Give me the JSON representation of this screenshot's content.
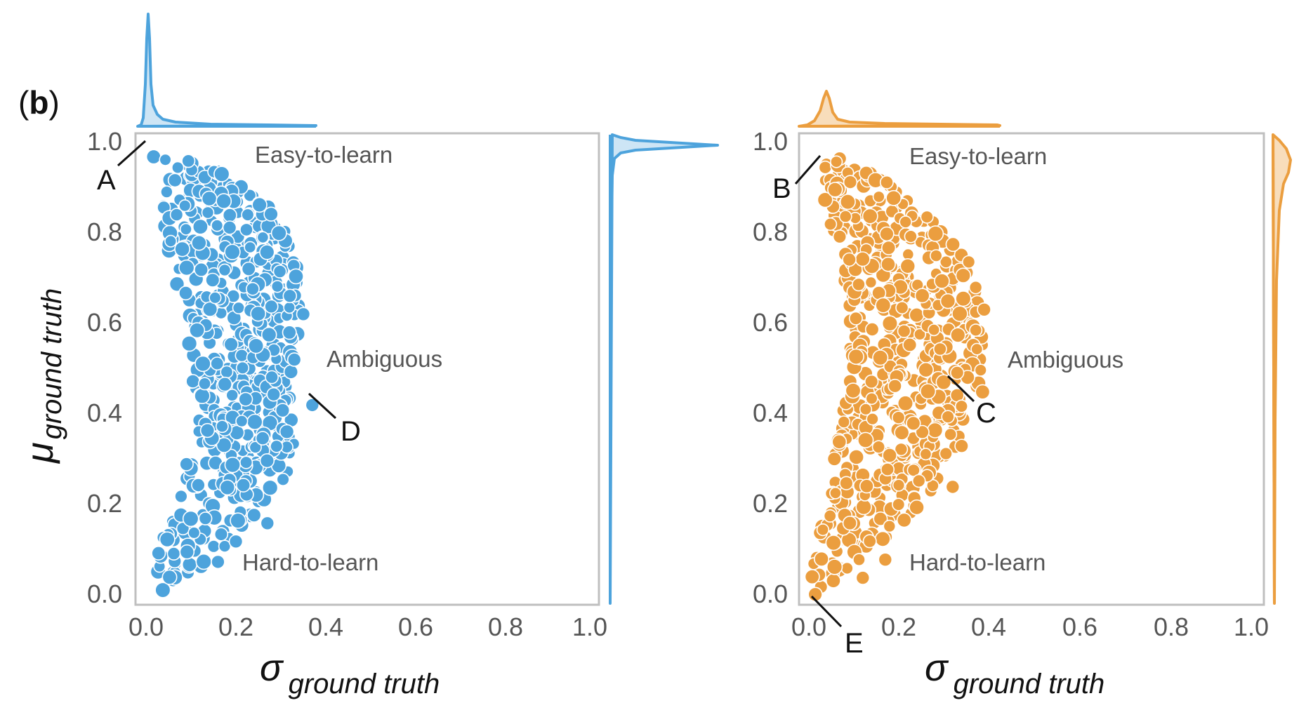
{
  "panel_label": {
    "open": "(",
    "letter": "b",
    "close": ")"
  },
  "colors": {
    "left_series": "#4DA3DC",
    "right_series": "#EB9E3F",
    "left_fill_light": "#CDE5F5",
    "right_fill_light": "#F8DDBB",
    "frame": "#BFBFBF",
    "callout_line": "#111111"
  },
  "chart_data": [
    {
      "type": "scatter",
      "marginals": "density curves on top (x) and right (y)",
      "xlabel": {
        "symbol": "σ",
        "subscript": "ground truth"
      },
      "ylabel": {
        "symbol": "μ",
        "subscript": "ground truth"
      },
      "xlim": [
        0.0,
        1.0
      ],
      "ylim": [
        0.0,
        1.0
      ],
      "xticks": [
        "0.0",
        "0.2",
        "0.4",
        "0.6",
        "0.8",
        "1.0"
      ],
      "yticks": [
        "0.0",
        "0.2",
        "0.4",
        "0.6",
        "0.8",
        "1.0"
      ],
      "grid": false,
      "region_labels": [
        "Easy-to-learn",
        "Ambiguous",
        "Hard-to-learn"
      ],
      "callouts": [
        {
          "label": "A",
          "x": 0.0,
          "y": 0.99
        },
        {
          "label": "D",
          "x": 0.36,
          "y": 0.45
        }
      ],
      "envelope": [
        [
          0.0,
          0.99
        ],
        [
          0.06,
          0.975
        ],
        [
          0.14,
          0.96
        ],
        [
          0.22,
          0.91
        ],
        [
          0.28,
          0.86
        ],
        [
          0.33,
          0.78
        ],
        [
          0.345,
          0.72
        ],
        [
          0.34,
          0.64
        ],
        [
          0.34,
          0.57
        ],
        [
          0.33,
          0.47
        ],
        [
          0.33,
          0.31
        ],
        [
          0.27,
          0.2
        ],
        [
          0.18,
          0.12
        ],
        [
          0.12,
          0.07
        ],
        [
          0.07,
          0.03
        ],
        [
          0.03,
          0.02
        ],
        [
          0.02,
          0.1
        ],
        [
          0.06,
          0.2
        ],
        [
          0.09,
          0.27
        ],
        [
          0.11,
          0.33
        ],
        [
          0.1,
          0.4
        ],
        [
          0.09,
          0.48
        ],
        [
          0.09,
          0.6
        ],
        [
          0.06,
          0.72
        ],
        [
          0.04,
          0.83
        ],
        [
          0.03,
          0.92
        ]
      ],
      "outliers": [
        [
          0.16,
          0.085
        ],
        [
          0.2,
          0.13
        ],
        [
          0.27,
          0.17
        ],
        [
          0.09,
          0.3
        ],
        [
          0.32,
          0.67
        ],
        [
          0.35,
          0.63
        ],
        [
          0.37,
          0.43
        ],
        [
          0.33,
          0.53
        ]
      ]
    },
    {
      "type": "scatter",
      "marginals": "density curves on top (x) and right (y)",
      "xlabel": {
        "symbol": "σ",
        "subscript": "ground truth"
      },
      "ylabel": {
        "symbol": "",
        "subscript": ""
      },
      "xlim": [
        0.0,
        1.0
      ],
      "ylim": [
        0.0,
        1.0
      ],
      "xticks": [
        "0.0",
        "0.2",
        "0.4",
        "0.6",
        "0.8",
        "1.0"
      ],
      "yticks": [
        "0.0",
        "0.2",
        "0.4",
        "0.6",
        "0.8",
        "1.0"
      ],
      "grid": false,
      "region_labels": [
        "Easy-to-learn",
        "Ambiguous",
        "Hard-to-learn"
      ],
      "callouts": [
        {
          "label": "B",
          "x": 0.03,
          "y": 0.98
        },
        {
          "label": "C",
          "x": 0.31,
          "y": 0.49
        },
        {
          "label": "E",
          "x": 0.0,
          "y": 0.01
        }
      ],
      "envelope": [
        [
          0.0,
          0.01
        ],
        [
          0.04,
          0.02
        ],
        [
          0.08,
          0.05
        ],
        [
          0.13,
          0.1
        ],
        [
          0.2,
          0.16
        ],
        [
          0.26,
          0.22
        ],
        [
          0.31,
          0.3
        ],
        [
          0.35,
          0.38
        ],
        [
          0.39,
          0.46
        ],
        [
          0.395,
          0.56
        ],
        [
          0.39,
          0.66
        ],
        [
          0.36,
          0.74
        ],
        [
          0.31,
          0.8
        ],
        [
          0.24,
          0.87
        ],
        [
          0.16,
          0.93
        ],
        [
          0.08,
          0.97
        ],
        [
          0.03,
          0.98
        ],
        [
          0.03,
          0.9
        ],
        [
          0.05,
          0.8
        ],
        [
          0.08,
          0.7
        ],
        [
          0.09,
          0.6
        ],
        [
          0.09,
          0.5
        ],
        [
          0.07,
          0.4
        ],
        [
          0.05,
          0.28
        ],
        [
          0.03,
          0.18
        ],
        [
          0.01,
          0.08
        ]
      ],
      "outliers": [
        [
          0.32,
          0.25
        ],
        [
          0.34,
          0.34
        ],
        [
          0.09,
          0.75
        ],
        [
          0.17,
          0.09
        ],
        [
          0.12,
          0.05
        ],
        [
          0.39,
          0.64
        ]
      ]
    }
  ]
}
